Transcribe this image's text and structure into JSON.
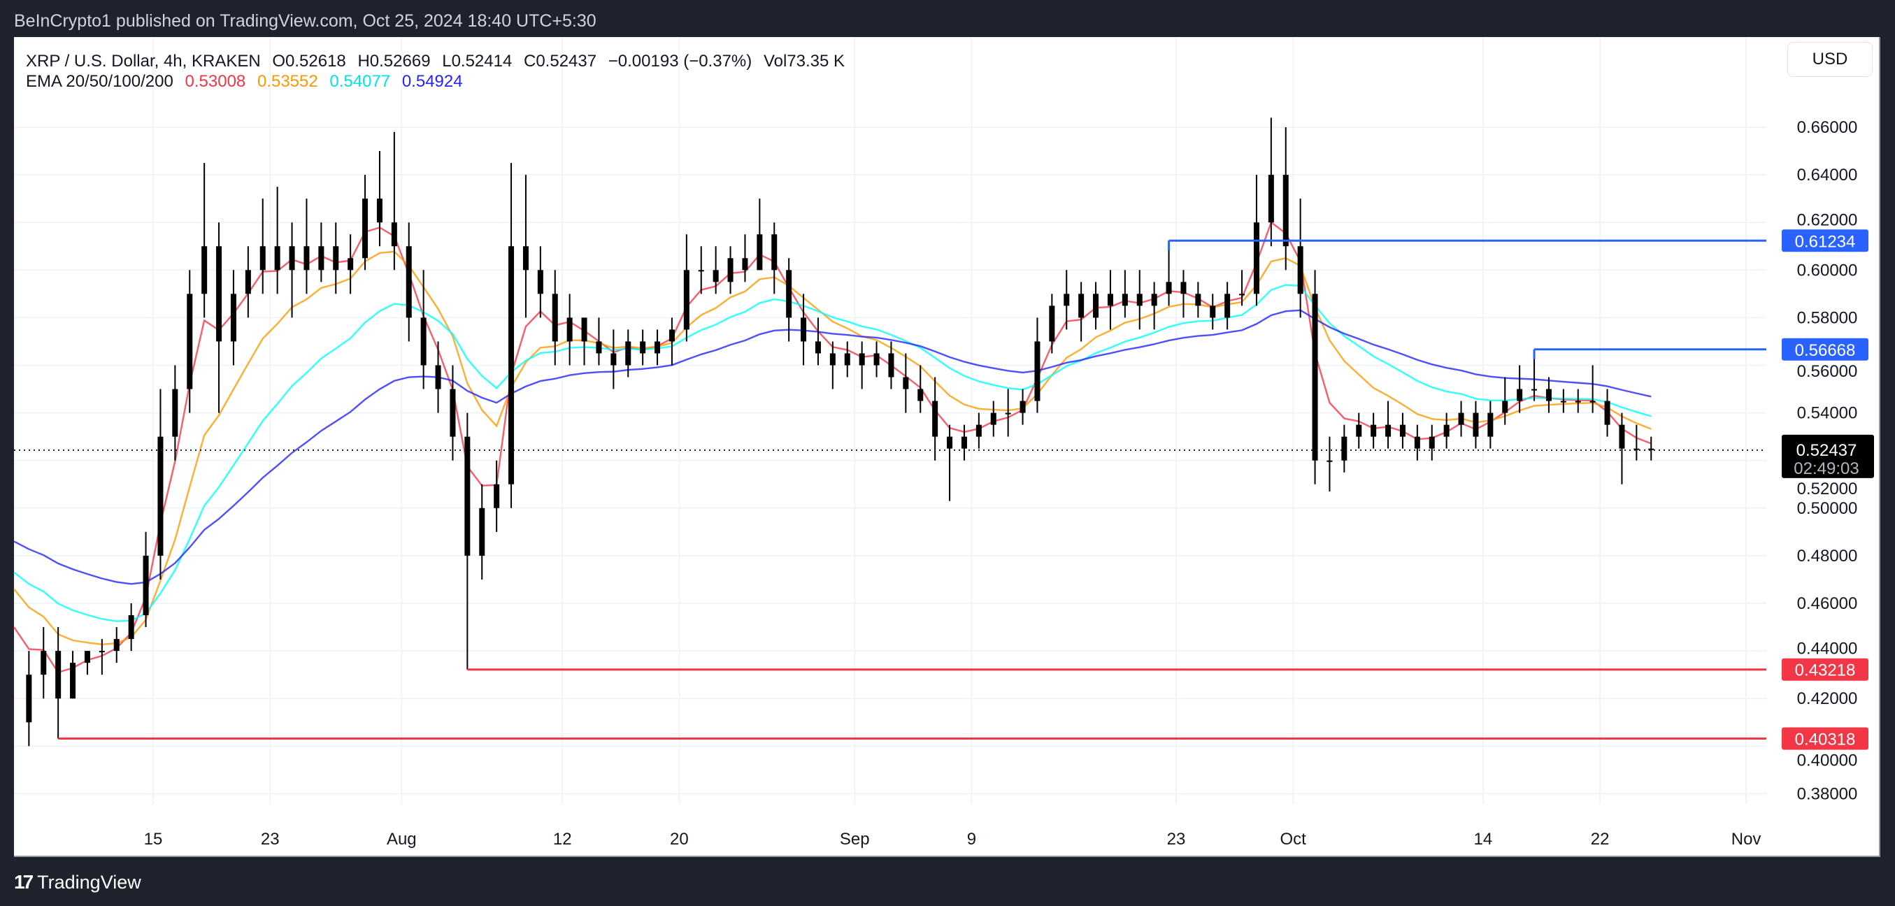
{
  "header": {
    "published": "BeInCrypto1 published on TradingView.com, Oct 25, 2024 18:40 UTC+5:30"
  },
  "legend": {
    "symbol": "XRP / U.S. Dollar, 4h, KRAKEN",
    "open": "O0.52618",
    "high": "H0.52669",
    "low": "L0.52414",
    "close": "C0.52437",
    "change": "−0.00193 (−0.37%)",
    "volume": "Vol73.35 K",
    "ema_label": "EMA 20/50/100/200",
    "ema_values": [
      "0.53008",
      "0.53552",
      "0.54077",
      "0.54924"
    ]
  },
  "currency_button": "USD",
  "footer": {
    "brand": "TradingView"
  },
  "colors": {
    "ema20": "#f23645",
    "ema50": "#ff9800",
    "ema100": "#00ffff",
    "ema200": "#2323ff",
    "resistance": "#2962ff",
    "support": "#f23645",
    "candle": "#000000"
  },
  "chart_data": {
    "type": "candlestick",
    "ylim": [
      0.365,
      0.67
    ],
    "y_ticks": [
      "0.66000",
      "0.64000",
      "0.62000",
      "0.60000",
      "0.58000",
      "0.56000",
      "0.54000",
      "0.52000",
      "0.50000",
      "0.48000",
      "0.46000",
      "0.44000",
      "0.42000",
      "0.40000",
      "0.38000"
    ],
    "x_ticks": [
      {
        "label": "15",
        "date": "2024-07-15"
      },
      {
        "label": "23",
        "date": "2024-07-23"
      },
      {
        "label": "Aug",
        "date": "2024-08-01"
      },
      {
        "label": "12",
        "date": "2024-08-12"
      },
      {
        "label": "20",
        "date": "2024-08-20"
      },
      {
        "label": "Sep",
        "date": "2024-09-01"
      },
      {
        "label": "9",
        "date": "2024-09-09"
      },
      {
        "label": "23",
        "date": "2024-09-23"
      },
      {
        "label": "Oct",
        "date": "2024-10-01"
      },
      {
        "label": "14",
        "date": "2024-10-14"
      },
      {
        "label": "22",
        "date": "2024-10-22"
      },
      {
        "label": "Nov",
        "date": "2024-11-01"
      }
    ],
    "ema_periods": [
      20,
      50,
      100,
      200
    ],
    "ema_start": [
      0.45,
      0.466,
      0.473,
      0.486
    ],
    "candles": [
      [
        "2024-07-06",
        0.41,
        0.44,
        0.4,
        0.43
      ],
      [
        "2024-07-07",
        0.43,
        0.45,
        0.42,
        0.44
      ],
      [
        "2024-07-08",
        0.44,
        0.45,
        0.40318,
        0.42
      ],
      [
        "2024-07-09",
        0.42,
        0.44,
        0.42,
        0.435
      ],
      [
        "2024-07-10",
        0.435,
        0.44,
        0.43,
        0.44
      ],
      [
        "2024-07-11",
        0.44,
        0.445,
        0.43,
        0.44
      ],
      [
        "2024-07-12",
        0.44,
        0.45,
        0.435,
        0.445
      ],
      [
        "2024-07-13",
        0.445,
        0.46,
        0.44,
        0.455
      ],
      [
        "2024-07-14",
        0.455,
        0.49,
        0.45,
        0.48
      ],
      [
        "2024-07-15",
        0.48,
        0.55,
        0.47,
        0.53
      ],
      [
        "2024-07-16",
        0.53,
        0.56,
        0.52,
        0.55
      ],
      [
        "2024-07-17",
        0.55,
        0.6,
        0.54,
        0.59
      ],
      [
        "2024-07-18",
        0.59,
        0.645,
        0.58,
        0.61
      ],
      [
        "2024-07-19",
        0.61,
        0.62,
        0.54,
        0.57
      ],
      [
        "2024-07-20",
        0.57,
        0.6,
        0.56,
        0.59
      ],
      [
        "2024-07-21",
        0.59,
        0.61,
        0.58,
        0.6
      ],
      [
        "2024-07-22",
        0.6,
        0.63,
        0.59,
        0.61
      ],
      [
        "2024-07-23",
        0.61,
        0.635,
        0.59,
        0.6
      ],
      [
        "2024-07-24",
        0.6,
        0.62,
        0.58,
        0.61
      ],
      [
        "2024-07-25",
        0.61,
        0.63,
        0.59,
        0.6
      ],
      [
        "2024-07-26",
        0.6,
        0.62,
        0.595,
        0.61
      ],
      [
        "2024-07-27",
        0.61,
        0.62,
        0.59,
        0.6
      ],
      [
        "2024-07-28",
        0.6,
        0.615,
        0.59,
        0.605
      ],
      [
        "2024-07-29",
        0.605,
        0.64,
        0.6,
        0.63
      ],
      [
        "2024-07-30",
        0.63,
        0.65,
        0.61,
        0.62
      ],
      [
        "2024-07-31",
        0.62,
        0.658,
        0.6,
        0.61
      ],
      [
        "2024-08-01",
        0.61,
        0.62,
        0.57,
        0.58
      ],
      [
        "2024-08-02",
        0.58,
        0.6,
        0.55,
        0.56
      ],
      [
        "2024-08-03",
        0.56,
        0.57,
        0.54,
        0.55
      ],
      [
        "2024-08-04",
        0.55,
        0.56,
        0.52,
        0.53
      ],
      [
        "2024-08-05",
        0.53,
        0.54,
        0.43218,
        0.48
      ],
      [
        "2024-08-06",
        0.48,
        0.51,
        0.47,
        0.5
      ],
      [
        "2024-08-07",
        0.5,
        0.52,
        0.49,
        0.51
      ],
      [
        "2024-08-08",
        0.51,
        0.645,
        0.5,
        0.61
      ],
      [
        "2024-08-09",
        0.61,
        0.64,
        0.58,
        0.6
      ],
      [
        "2024-08-10",
        0.6,
        0.61,
        0.58,
        0.59
      ],
      [
        "2024-08-11",
        0.59,
        0.6,
        0.56,
        0.57
      ],
      [
        "2024-08-12",
        0.57,
        0.59,
        0.56,
        0.58
      ],
      [
        "2024-08-13",
        0.58,
        0.58,
        0.56,
        0.57
      ],
      [
        "2024-08-14",
        0.57,
        0.58,
        0.56,
        0.565
      ],
      [
        "2024-08-15",
        0.565,
        0.575,
        0.55,
        0.56
      ],
      [
        "2024-08-16",
        0.56,
        0.575,
        0.555,
        0.57
      ],
      [
        "2024-08-17",
        0.57,
        0.575,
        0.56,
        0.565
      ],
      [
        "2024-08-18",
        0.565,
        0.575,
        0.56,
        0.57
      ],
      [
        "2024-08-19",
        0.57,
        0.58,
        0.56,
        0.575
      ],
      [
        "2024-08-20",
        0.575,
        0.615,
        0.57,
        0.6
      ],
      [
        "2024-08-21",
        0.6,
        0.61,
        0.59,
        0.6
      ],
      [
        "2024-08-22",
        0.6,
        0.61,
        0.59,
        0.595
      ],
      [
        "2024-08-23",
        0.595,
        0.61,
        0.59,
        0.605
      ],
      [
        "2024-08-24",
        0.605,
        0.615,
        0.595,
        0.6
      ],
      [
        "2024-08-25",
        0.6,
        0.63,
        0.6,
        0.615
      ],
      [
        "2024-08-26",
        0.615,
        0.62,
        0.59,
        0.6
      ],
      [
        "2024-08-27",
        0.6,
        0.605,
        0.57,
        0.58
      ],
      [
        "2024-08-28",
        0.58,
        0.59,
        0.56,
        0.57
      ],
      [
        "2024-08-29",
        0.57,
        0.58,
        0.56,
        0.565
      ],
      [
        "2024-08-30",
        0.565,
        0.57,
        0.55,
        0.56
      ],
      [
        "2024-08-31",
        0.56,
        0.57,
        0.555,
        0.565
      ],
      [
        "2024-09-01",
        0.565,
        0.57,
        0.55,
        0.56
      ],
      [
        "2024-09-02",
        0.56,
        0.57,
        0.555,
        0.565
      ],
      [
        "2024-09-03",
        0.565,
        0.57,
        0.55,
        0.555
      ],
      [
        "2024-09-04",
        0.555,
        0.565,
        0.54,
        0.55
      ],
      [
        "2024-09-05",
        0.55,
        0.56,
        0.54,
        0.545
      ],
      [
        "2024-09-06",
        0.545,
        0.555,
        0.52,
        0.53
      ],
      [
        "2024-09-07",
        0.53,
        0.535,
        0.503,
        0.525
      ],
      [
        "2024-09-08",
        0.525,
        0.535,
        0.52,
        0.53
      ],
      [
        "2024-09-09",
        0.53,
        0.54,
        0.525,
        0.535
      ],
      [
        "2024-09-10",
        0.535,
        0.545,
        0.53,
        0.54
      ],
      [
        "2024-09-11",
        0.54,
        0.55,
        0.53,
        0.54
      ],
      [
        "2024-09-12",
        0.54,
        0.55,
        0.535,
        0.545
      ],
      [
        "2024-09-13",
        0.545,
        0.58,
        0.54,
        0.57
      ],
      [
        "2024-09-14",
        0.57,
        0.59,
        0.565,
        0.585
      ],
      [
        "2024-09-15",
        0.585,
        0.6,
        0.575,
        0.59
      ],
      [
        "2024-09-16",
        0.59,
        0.595,
        0.57,
        0.58
      ],
      [
        "2024-09-17",
        0.58,
        0.595,
        0.575,
        0.59
      ],
      [
        "2024-09-18",
        0.59,
        0.6,
        0.575,
        0.585
      ],
      [
        "2024-09-19",
        0.585,
        0.6,
        0.58,
        0.59
      ],
      [
        "2024-09-20",
        0.59,
        0.6,
        0.575,
        0.585
      ],
      [
        "2024-09-21",
        0.585,
        0.595,
        0.575,
        0.59
      ],
      [
        "2024-09-22",
        0.59,
        0.61234,
        0.585,
        0.595
      ],
      [
        "2024-09-23",
        0.595,
        0.6,
        0.58,
        0.59
      ],
      [
        "2024-09-24",
        0.59,
        0.595,
        0.58,
        0.585
      ],
      [
        "2024-09-25",
        0.585,
        0.59,
        0.575,
        0.58
      ],
      [
        "2024-09-26",
        0.58,
        0.595,
        0.575,
        0.59
      ],
      [
        "2024-09-27",
        0.59,
        0.6,
        0.585,
        0.59
      ],
      [
        "2024-09-28",
        0.59,
        0.64,
        0.585,
        0.62
      ],
      [
        "2024-09-29",
        0.62,
        0.664,
        0.61,
        0.64
      ],
      [
        "2024-09-30",
        0.64,
        0.66,
        0.6,
        0.61
      ],
      [
        "2024-10-01",
        0.61,
        0.63,
        0.58,
        0.59
      ],
      [
        "2024-10-02",
        0.59,
        0.6,
        0.51,
        0.52
      ],
      [
        "2024-10-03",
        0.52,
        0.53,
        0.507,
        0.52
      ],
      [
        "2024-10-04",
        0.52,
        0.535,
        0.515,
        0.53
      ],
      [
        "2024-10-05",
        0.53,
        0.54,
        0.525,
        0.535
      ],
      [
        "2024-10-06",
        0.535,
        0.54,
        0.525,
        0.53
      ],
      [
        "2024-10-07",
        0.53,
        0.545,
        0.525,
        0.535
      ],
      [
        "2024-10-08",
        0.535,
        0.54,
        0.525,
        0.53
      ],
      [
        "2024-10-09",
        0.53,
        0.535,
        0.52,
        0.525
      ],
      [
        "2024-10-10",
        0.525,
        0.535,
        0.52,
        0.53
      ],
      [
        "2024-10-11",
        0.53,
        0.54,
        0.525,
        0.535
      ],
      [
        "2024-10-12",
        0.535,
        0.545,
        0.53,
        0.54
      ],
      [
        "2024-10-13",
        0.54,
        0.545,
        0.525,
        0.53
      ],
      [
        "2024-10-14",
        0.53,
        0.545,
        0.525,
        0.54
      ],
      [
        "2024-10-15",
        0.54,
        0.555,
        0.535,
        0.545
      ],
      [
        "2024-10-16",
        0.545,
        0.56,
        0.54,
        0.55
      ],
      [
        "2024-10-17",
        0.55,
        0.56668,
        0.545,
        0.55
      ],
      [
        "2024-10-18",
        0.55,
        0.555,
        0.54,
        0.545
      ],
      [
        "2024-10-19",
        0.545,
        0.55,
        0.54,
        0.545
      ],
      [
        "2024-10-20",
        0.545,
        0.55,
        0.54,
        0.545
      ],
      [
        "2024-10-21",
        0.545,
        0.56,
        0.54,
        0.545
      ],
      [
        "2024-10-22",
        0.545,
        0.55,
        0.53,
        0.535
      ],
      [
        "2024-10-23",
        0.535,
        0.54,
        0.51,
        0.525
      ],
      [
        "2024-10-24",
        0.525,
        0.535,
        0.52,
        0.525
      ],
      [
        "2024-10-25",
        0.525,
        0.53,
        0.52,
        0.52437
      ]
    ],
    "horizontal_levels": [
      {
        "value": 0.61234,
        "label": "0.61234",
        "from": "2024-09-22",
        "kind": "resistance"
      },
      {
        "value": 0.56668,
        "label": "0.56668",
        "from": "2024-10-17",
        "kind": "resistance"
      },
      {
        "value": 0.43218,
        "label": "0.43218",
        "from": "2024-08-05",
        "kind": "support"
      },
      {
        "value": 0.40318,
        "label": "0.40318",
        "from": "2024-07-08",
        "kind": "support"
      }
    ],
    "last_price": {
      "value": 0.52437,
      "label": "0.52437",
      "countdown": "02:49:03"
    }
  }
}
